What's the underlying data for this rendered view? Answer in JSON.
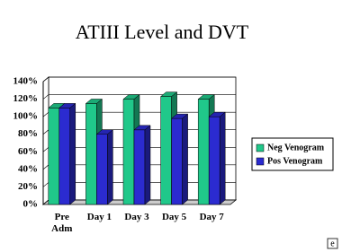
{
  "chart_data": {
    "type": "bar3d",
    "title": "ATIII Level and DVT",
    "categories": [
      "Pre Adm",
      "Day 1",
      "Day 3",
      "Day 5",
      "Day 7"
    ],
    "series": [
      {
        "name": "Neg Venogram",
        "color": "#20c88a",
        "values": [
          110,
          115,
          120,
          123,
          120
        ]
      },
      {
        "name": "Pos Venogram",
        "color": "#2b2bd0",
        "values": [
          110,
          80,
          85,
          98,
          100
        ]
      }
    ],
    "ylim": [
      0,
      140
    ],
    "yticks": [
      {
        "value": 0,
        "label": "0%"
      },
      {
        "value": 20,
        "label": "20%"
      },
      {
        "value": 40,
        "label": "40%"
      },
      {
        "value": 60,
        "label": "60%"
      },
      {
        "value": 80,
        "label": "80%"
      },
      {
        "value": 100,
        "label": "100%"
      },
      {
        "value": 120,
        "label": "120%"
      },
      {
        "value": 140,
        "label": "140%"
      }
    ],
    "grid": true,
    "legend": "right"
  }
}
